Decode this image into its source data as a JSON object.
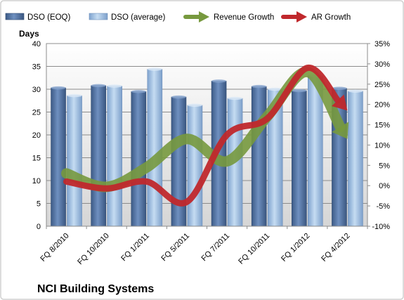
{
  "chart_data": {
    "type": "bar",
    "title": "NCI Building Systems",
    "y_axis_title": "Days",
    "categories": [
      "FQ 8/2010",
      "FQ 10/2010",
      "FQ 1/2011",
      "FQ 5/2011",
      "FQ 7/2011",
      "FQ 10/2011",
      "FQ 1/2012",
      "FQ 4/2012"
    ],
    "ylim": [
      0,
      40
    ],
    "yticks": [
      "0",
      "5",
      "10",
      "15",
      "20",
      "25",
      "30",
      "35",
      "40"
    ],
    "y2lim": [
      -10,
      35
    ],
    "y2ticks": [
      "-10%",
      "-5%",
      "0%",
      "5%",
      "10%",
      "15%",
      "20%",
      "25%",
      "30%",
      "35%"
    ],
    "grid": true,
    "legend_position": "top",
    "series": [
      {
        "name": "DSO (EOQ)",
        "kind": "bar",
        "axis": "left",
        "color": "#4f6f9e",
        "values": [
          30.3,
          30.8,
          29.5,
          28.3,
          31.8,
          30.6,
          29.7,
          30.2
        ]
      },
      {
        "name": "DSO (average)",
        "kind": "bar",
        "axis": "left",
        "color": "#9dbde0",
        "values": [
          28.6,
          30.7,
          34.4,
          26.5,
          28.0,
          30.0,
          33.0,
          29.6
        ]
      },
      {
        "name": "Revenue Growth",
        "kind": "line-arrow",
        "axis": "right",
        "color": "#77993e",
        "values": [
          3.0,
          -0.3,
          4.5,
          11.5,
          6.0,
          17.0,
          28.0,
          11.5
        ]
      },
      {
        "name": "AR Growth",
        "kind": "line-arrow",
        "axis": "right",
        "color": "#c0282c",
        "values": [
          1.0,
          -0.7,
          1.0,
          -4.0,
          12.5,
          16.5,
          29.0,
          18.5
        ]
      }
    ]
  }
}
